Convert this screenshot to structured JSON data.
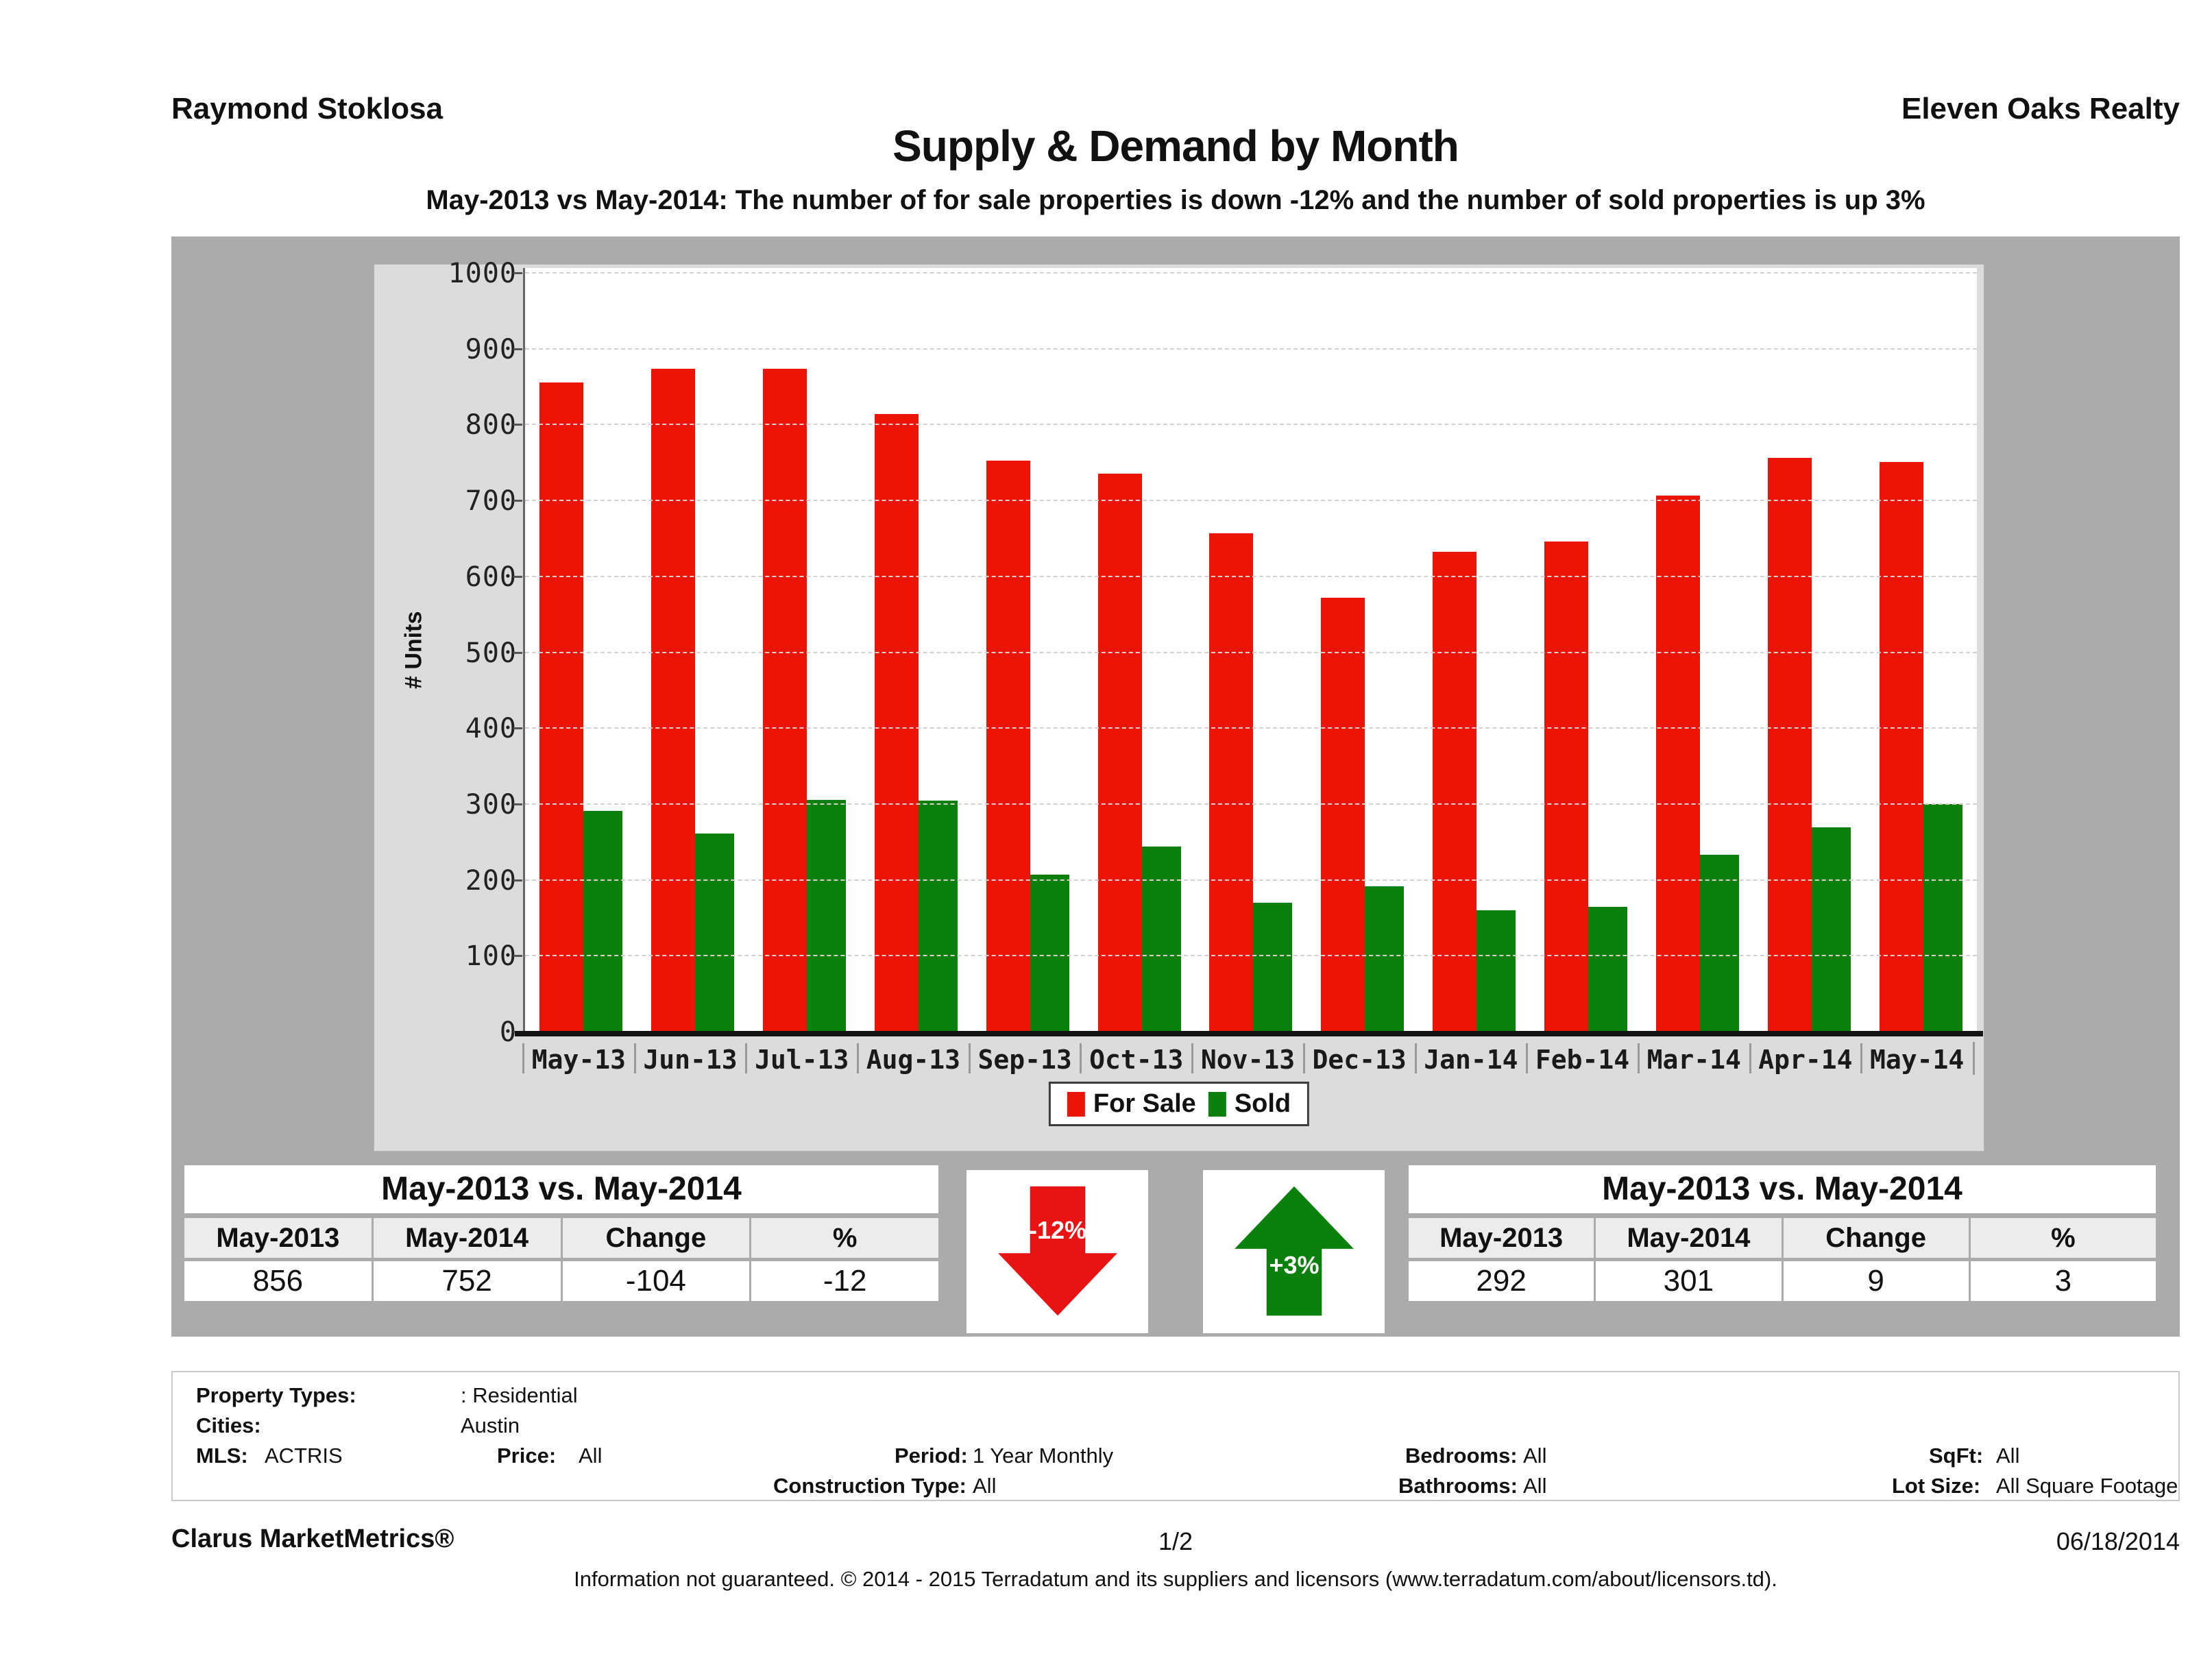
{
  "header": {
    "agent_name": "Raymond Stoklosa",
    "company_name": "Eleven Oaks Realty",
    "report_title": "Supply & Demand by Month",
    "report_subtitle": "May-2013 vs May-2014: The number of for sale properties is down -12% and the number of sold properties is up 3%"
  },
  "chart_data": {
    "type": "bar",
    "title": "Supply & Demand by Month",
    "categories": [
      "May-13",
      "Jun-13",
      "Jul-13",
      "Aug-13",
      "Sep-13",
      "Oct-13",
      "Nov-13",
      "Dec-13",
      "Jan-14",
      "Feb-14",
      "Mar-14",
      "Apr-14",
      "May-14"
    ],
    "series": [
      {
        "name": "For Sale",
        "color": "#ec1404",
        "values": [
          856,
          874,
          874,
          815,
          753,
          736,
          658,
          573,
          633,
          647,
          707,
          757,
          752
        ]
      },
      {
        "name": "Sold",
        "color": "#0c800c",
        "values": [
          292,
          262,
          306,
          305,
          208,
          245,
          171,
          192,
          161,
          165,
          234,
          270,
          301
        ]
      }
    ],
    "xlabel": "",
    "ylabel": "# Units",
    "ylim": [
      0,
      1000
    ],
    "ytick_step": 100,
    "grid": "horizontal dashed",
    "legend_position": "bottom"
  },
  "tables": {
    "for_sale": {
      "title": "May-2013 vs. May-2014",
      "headers": [
        "May-2013",
        "May-2014",
        "Change",
        "%"
      ],
      "values": [
        "856",
        "752",
        "-104",
        "-12"
      ]
    },
    "sold": {
      "title": "May-2013 vs. May-2014",
      "headers": [
        "May-2013",
        "May-2014",
        "Change",
        "%"
      ],
      "values": [
        "292",
        "301",
        "9",
        "3"
      ]
    }
  },
  "badges": {
    "for_sale_change": {
      "direction": "down",
      "text": "-12%",
      "color": "#e81414"
    },
    "sold_change": {
      "direction": "up",
      "text": "+3%",
      "color": "#0c800c"
    }
  },
  "filters": {
    "property_types": {
      "label": "Property Types:",
      "value": ": Residential"
    },
    "cities": {
      "label": "Cities:",
      "value": "Austin"
    },
    "mls": {
      "label": "MLS:",
      "value": "ACTRIS"
    },
    "price": {
      "label": "Price:",
      "value": "All"
    },
    "period": {
      "label": "Period:",
      "value": "1 Year Monthly"
    },
    "construction_type": {
      "label": "Construction Type:",
      "value": "All"
    },
    "bedrooms": {
      "label": "Bedrooms:",
      "value": "All"
    },
    "bathrooms": {
      "label": "Bathrooms:",
      "value": "All"
    },
    "sqft": {
      "label": "SqFt:",
      "value": "All"
    },
    "lot_size": {
      "label": "Lot Size:",
      "value": "All Square Footage"
    }
  },
  "footer": {
    "product": "Clarus MarketMetrics®",
    "page_number": "1/2",
    "date": "06/18/2014",
    "disclaimer": "Information not guaranteed. © 2014 - 2015 Terradatum and its suppliers and licensors (www.terradatum.com/about/licensors.td)."
  }
}
